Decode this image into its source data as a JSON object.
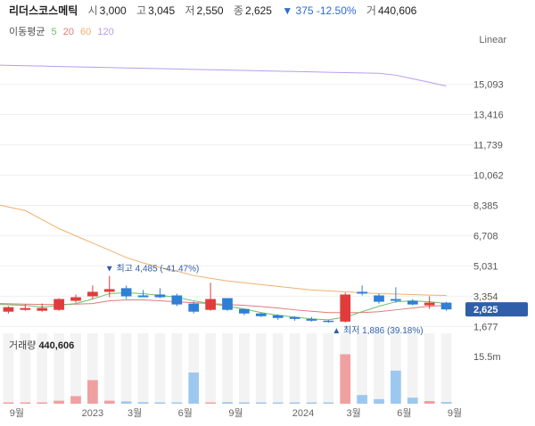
{
  "quote": {
    "name": "리더스코스메틱",
    "open_label": "시",
    "open": "3,000",
    "high_label": "고",
    "high": "3,045",
    "low_label": "저",
    "low": "2,550",
    "close_label": "종",
    "close": "2,625",
    "change": "▼ 375 -12.50%",
    "volume_label": "거",
    "volume": "440,606"
  },
  "ma_legend": {
    "title": "이동평균",
    "ma5": "5",
    "ma20": "20",
    "ma60": "60",
    "ma120": "120"
  },
  "scale_type": "Linear",
  "colors": {
    "up": "#e03c3c",
    "down": "#2f7fd6",
    "ma5": "#6abf69",
    "ma20": "#e07a7a",
    "ma60": "#f0b070",
    "ma120": "#b79cf0",
    "price_badge": "#2f5fa8",
    "vol_up": "#f0a0a0",
    "vol_down": "#9cc8f0"
  },
  "price_badge": "2,625",
  "annotations": {
    "high": "▼ 최고 4,485 (-41.47%)",
    "low": "▲ 최저 1,886 (39.18%)"
  },
  "volume_title": {
    "label": "거래량",
    "value": "440,606"
  },
  "chart_data": {
    "type": "candlestick",
    "y_ticks": [
      "15,093",
      "13,416",
      "11,739",
      "10,062",
      "8,385",
      "6,708",
      "5,031",
      "3,354",
      "1,677"
    ],
    "y_tick_values": [
      15093,
      13416,
      11739,
      10062,
      8385,
      6708,
      5031,
      3354,
      1677
    ],
    "ylim": [
      1400,
      16800
    ],
    "x_ticks": [
      "9월",
      "2023",
      "3월",
      "6월",
      "9월",
      "2024",
      "3월",
      "6월",
      "9월"
    ],
    "x_tick_index": [
      0.5,
      5,
      7.5,
      10.5,
      13.5,
      17.5,
      20.5,
      23.5,
      26.5
    ],
    "vol_axis_label": "15.5m",
    "vol_max": 18500000,
    "candles": [
      {
        "o": 2500,
        "h": 2800,
        "l": 2400,
        "c": 2750
      },
      {
        "o": 2600,
        "h": 2900,
        "l": 2550,
        "c": 2700
      },
      {
        "o": 2550,
        "h": 2950,
        "l": 2500,
        "c": 2700
      },
      {
        "o": 2600,
        "h": 3250,
        "l": 2550,
        "c": 3200
      },
      {
        "o": 3100,
        "h": 3450,
        "l": 3000,
        "c": 3300
      },
      {
        "o": 3350,
        "h": 3950,
        "l": 3200,
        "c": 3600
      },
      {
        "o": 3600,
        "h": 4485,
        "l": 3300,
        "c": 3750
      },
      {
        "o": 3800,
        "h": 3950,
        "l": 3200,
        "c": 3350
      },
      {
        "o": 3400,
        "h": 3700,
        "l": 3300,
        "c": 3300
      },
      {
        "o": 3450,
        "h": 3800,
        "l": 3250,
        "c": 3300
      },
      {
        "o": 3400,
        "h": 3500,
        "l": 2800,
        "c": 2900
      },
      {
        "o": 2950,
        "h": 3050,
        "l": 2400,
        "c": 2500
      },
      {
        "o": 2600,
        "h": 4100,
        "l": 2550,
        "c": 3200
      },
      {
        "o": 3250,
        "h": 3250,
        "l": 2550,
        "c": 2600
      },
      {
        "o": 2650,
        "h": 2650,
        "l": 2300,
        "c": 2400
      },
      {
        "o": 2400,
        "h": 2450,
        "l": 2200,
        "c": 2250
      },
      {
        "o": 2300,
        "h": 2350,
        "l": 2050,
        "c": 2150
      },
      {
        "o": 2200,
        "h": 2250,
        "l": 2000,
        "c": 2100
      },
      {
        "o": 2100,
        "h": 2200,
        "l": 1950,
        "c": 2000
      },
      {
        "o": 2000,
        "h": 2050,
        "l": 1886,
        "c": 1950
      },
      {
        "o": 1950,
        "h": 3550,
        "l": 1900,
        "c": 3450
      },
      {
        "o": 3600,
        "h": 3950,
        "l": 3400,
        "c": 3500
      },
      {
        "o": 3400,
        "h": 3500,
        "l": 2950,
        "c": 3050
      },
      {
        "o": 3200,
        "h": 3850,
        "l": 3000,
        "c": 3100
      },
      {
        "o": 3100,
        "h": 3200,
        "l": 2850,
        "c": 2900
      },
      {
        "o": 2850,
        "h": 3350,
        "l": 2650,
        "c": 3000
      },
      {
        "o": 3000,
        "h": 3045,
        "l": 2550,
        "c": 2625
      }
    ],
    "volume": [
      300000,
      150000,
      300000,
      800000,
      2000000,
      6200000,
      800000,
      600000,
      400000,
      300000,
      250000,
      8200000,
      300000,
      400000,
      200000,
      150000,
      150000,
      200000,
      150000,
      200000,
      13000000,
      2300000,
      1200000,
      8700000,
      1600000,
      700000,
      440606
    ],
    "ma5": [
      2900,
      2850,
      2750,
      2850,
      2950,
      3200,
      3500,
      3550,
      3500,
      3400,
      3300,
      3100,
      2950,
      2800,
      2650,
      2450,
      2300,
      2200,
      2100,
      2050,
      2200,
      2500,
      2800,
      3050,
      3100,
      3050,
      2950
    ],
    "ma20": [
      2950,
      2920,
      2900,
      2900,
      2920,
      2950,
      3100,
      3150,
      3150,
      3100,
      3050,
      3000,
      2950,
      2900,
      2850,
      2780,
      2700,
      2600,
      2520,
      2450,
      2450,
      2450,
      2500,
      2600,
      2700,
      2800,
      2850
    ],
    "ma60": [
      8400,
      8100,
      7600,
      7100,
      6700,
      6300,
      5900,
      5500,
      5200,
      4950,
      4750,
      4500,
      4350,
      4200,
      4100,
      4000,
      3900,
      3800,
      3700,
      3650,
      3600,
      3550,
      3500,
      3480,
      3450,
      3420,
      3400
    ],
    "ma120": [
      16150,
      16120,
      16100,
      16080,
      16060,
      16040,
      16020,
      16000,
      15980,
      15960,
      15940,
      15920,
      15900,
      15880,
      15860,
      15840,
      15820,
      15800,
      15780,
      15760,
      15740,
      15720,
      15700,
      15600,
      15400,
      15200,
      15000
    ]
  }
}
